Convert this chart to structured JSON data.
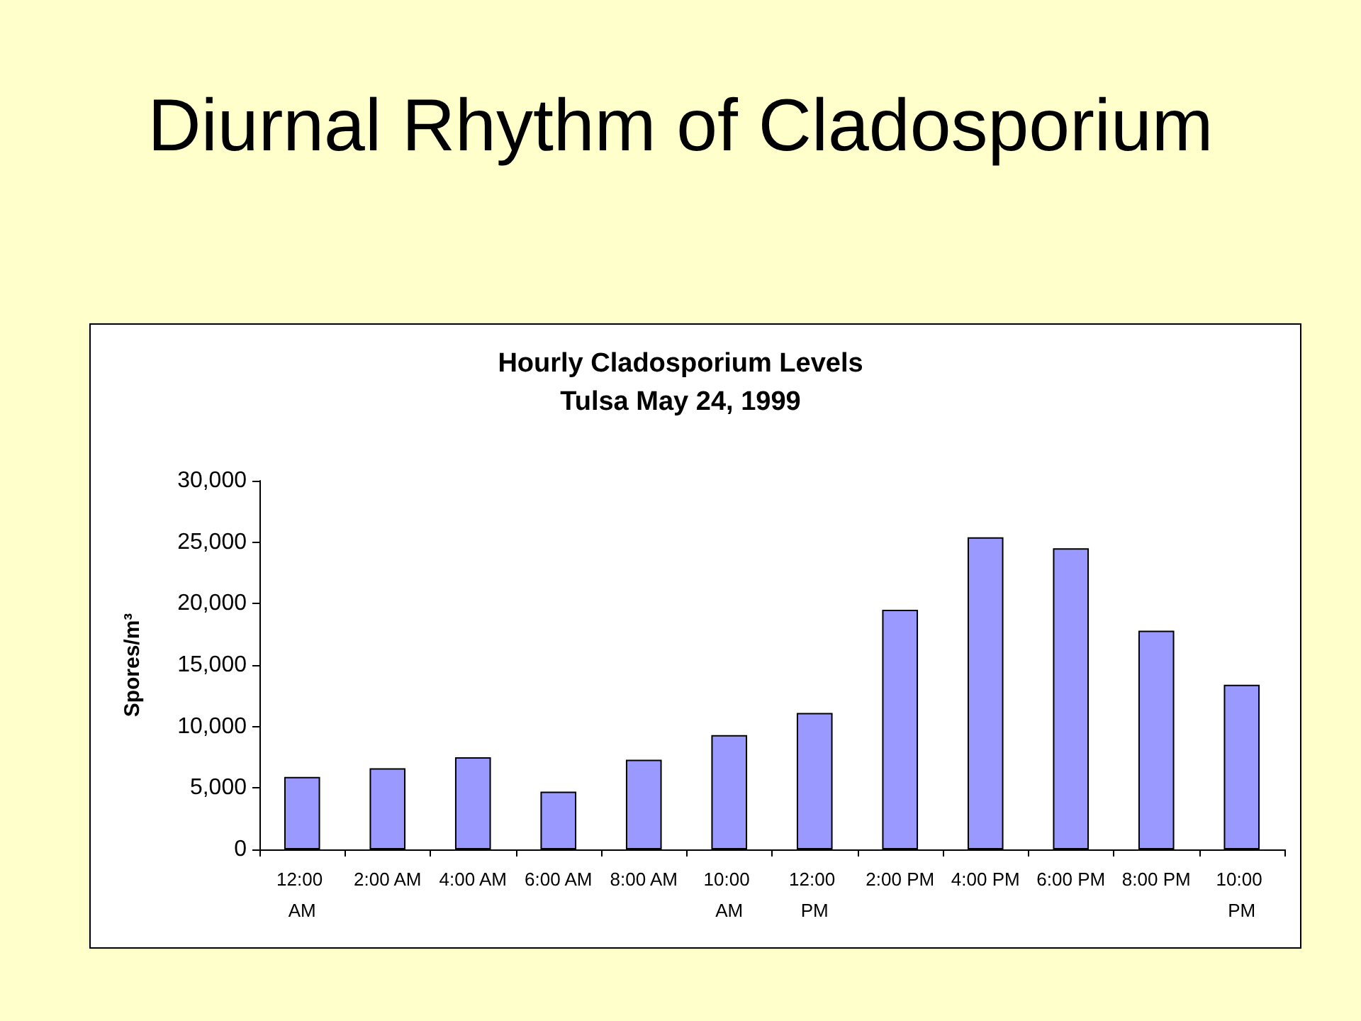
{
  "chart_data": {
    "type": "bar",
    "title": "Diurnal Rhythm of Cladosporium",
    "subtitle": "Hourly Cladosporium Levels",
    "annotations": [
      "Tulsa May 24, 1999"
    ],
    "ylabel": "Spores/m³",
    "categories": [
      "12:00 AM",
      "2:00 AM",
      "4:00 AM",
      "6:00 AM",
      "8:00 AM",
      "10:00 AM",
      "12:00 PM",
      "2:00 PM",
      "4:00 PM",
      "6:00 PM",
      "8:00 PM",
      "10:00 PM"
    ],
    "values": [
      5900,
      6600,
      7500,
      4700,
      7300,
      9300,
      11100,
      19500,
      25400,
      24500,
      17800,
      13400
    ],
    "color": "#9999ff",
    "ylim": [
      0,
      30000
    ],
    "yticks": [
      {
        "value": 0,
        "label": "0"
      },
      {
        "value": 5000,
        "label": "5,000"
      },
      {
        "value": 10000,
        "label": "10,000"
      },
      {
        "value": 15000,
        "label": "15,000"
      },
      {
        "value": 20000,
        "label": "20,000"
      },
      {
        "value": 25000,
        "label": "25,000"
      },
      {
        "value": 30000,
        "label": "30,000"
      }
    ]
  }
}
